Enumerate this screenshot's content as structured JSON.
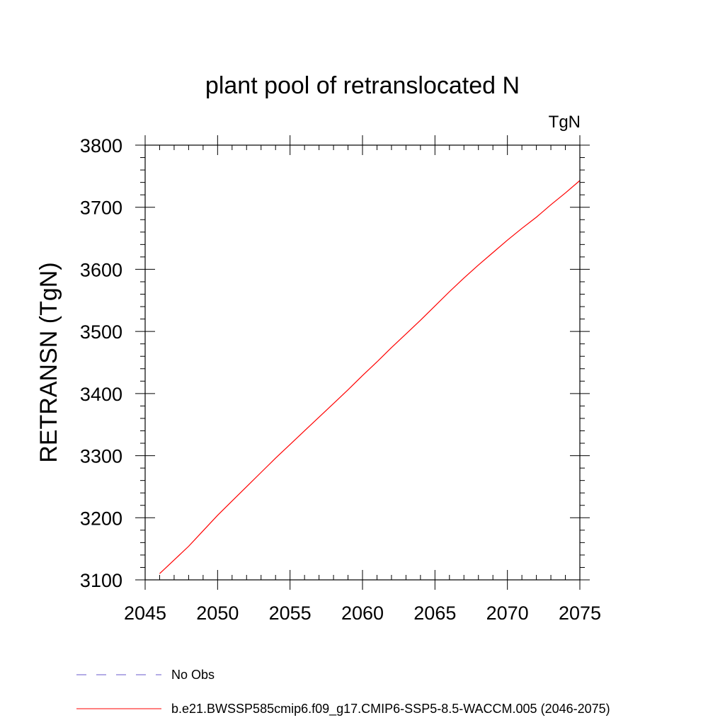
{
  "chart_data": {
    "type": "line",
    "title": "plant pool of retranslocated N",
    "units_label": "TgN",
    "ylabel": "RETRANSN  (TgN)",
    "xlabel": "",
    "xlim": [
      2045,
      2075
    ],
    "ylim": [
      3100,
      3800
    ],
    "x_ticks": [
      2045,
      2050,
      2055,
      2060,
      2065,
      2070,
      2075
    ],
    "y_ticks": [
      3100,
      3200,
      3300,
      3400,
      3500,
      3600,
      3700,
      3800
    ],
    "x_minor_step": 1,
    "y_minor_step": 20,
    "grid": false,
    "legend_position": "bottom-left",
    "series": [
      {
        "name": "b.e21.BWSSP585cmip6.f09_g17.CMIP6-SSP5-8.5-WACCM.005 (2046-2075)",
        "color": "#ff0000",
        "style": "solid",
        "x": [
          2046,
          2047,
          2048,
          2049,
          2050,
          2051,
          2052,
          2053,
          2054,
          2055,
          2056,
          2057,
          2058,
          2059,
          2060,
          2061,
          2062,
          2063,
          2064,
          2065,
          2066,
          2067,
          2068,
          2069,
          2070,
          2071,
          2072,
          2073,
          2074,
          2075
        ],
        "y": [
          3110,
          3132,
          3154,
          3179,
          3204,
          3227,
          3250,
          3273,
          3296,
          3318,
          3340,
          3362,
          3384,
          3406,
          3429,
          3451,
          3474,
          3496,
          3518,
          3541,
          3564,
          3586,
          3607,
          3627,
          3647,
          3666,
          3684,
          3704,
          3723,
          3743
        ]
      },
      {
        "name": "No Obs",
        "color": "#6a5acd",
        "style": "dashed",
        "x": [],
        "y": []
      }
    ]
  }
}
